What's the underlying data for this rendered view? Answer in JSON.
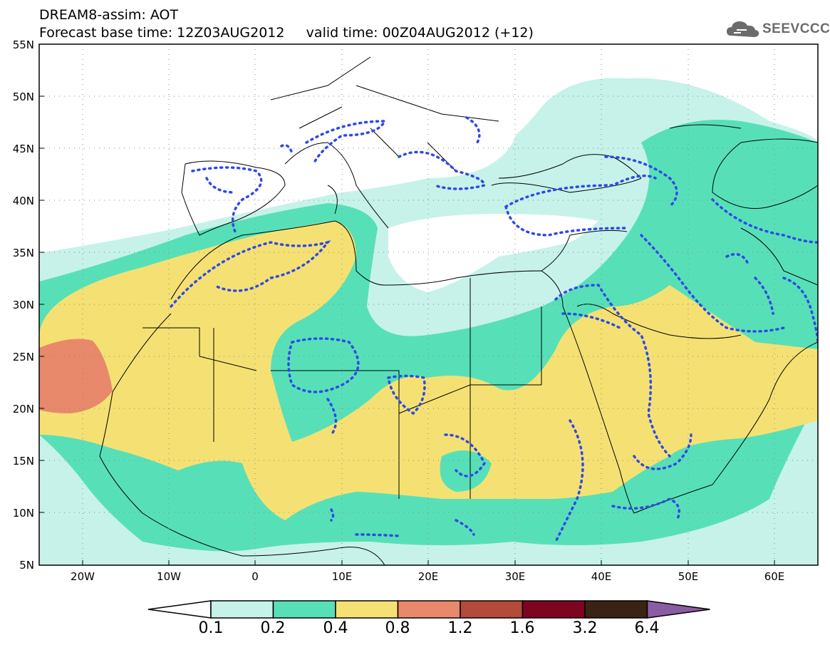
{
  "header": {
    "line1": "DREAM8-assim: AOT",
    "line2": "Forecast base time: 12Z03AUG2012     valid time: 00Z04AUG2012 (+12)"
  },
  "logo": {
    "text": "SEEVCCC",
    "icon": "cloud-icon"
  },
  "map": {
    "lon_range": [
      -25,
      65
    ],
    "lat_range": [
      5,
      55
    ],
    "lat_labels": [
      "55N",
      "50N",
      "45N",
      "40N",
      "35N",
      "30N",
      "25N",
      "20N",
      "15N",
      "10N",
      "5N"
    ],
    "lon_labels": [
      "20W",
      "10W",
      "0",
      "10E",
      "20E",
      "30E",
      "40E",
      "50E",
      "60E"
    ]
  },
  "colorbar": {
    "levels": [
      "0.1",
      "0.2",
      "0.4",
      "0.8",
      "1.2",
      "1.6",
      "3.2",
      "6.4"
    ],
    "colors": [
      "#ffffff",
      "#c6f2ea",
      "#57e0b8",
      "#f5e173",
      "#e8896b",
      "#b34a3a",
      "#7d0522",
      "#3b2314",
      "#8a5ca4"
    ]
  }
}
